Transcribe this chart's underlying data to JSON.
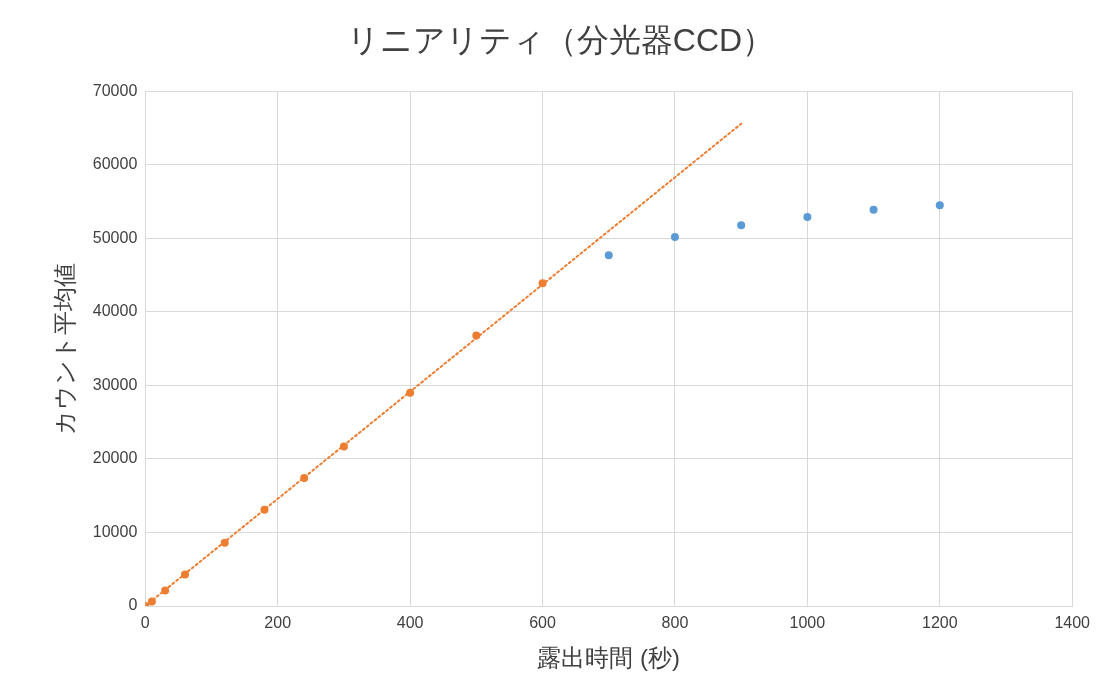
{
  "chart_data": {
    "type": "scatter",
    "title": "リニアリティ（分光器CCD）",
    "xlabel": "露出時間 (秒)",
    "ylabel": "カウント平均値",
    "series": [
      {
        "type": "scatter",
        "color": "#5b9bd5",
        "x": [
          700,
          800,
          900,
          1000,
          1100,
          1200
        ],
        "values": [
          47700,
          50200,
          51800,
          52900,
          53900,
          54500
        ]
      },
      {
        "type": "scatter",
        "color": "#ed7d31",
        "x": [
          0,
          10,
          30,
          60,
          120,
          180,
          240,
          300,
          400,
          500,
          600
        ],
        "values": [
          0,
          600,
          2100,
          4300,
          8600,
          13100,
          17400,
          21700,
          29000,
          36800,
          43900
        ]
      },
      {
        "type": "line",
        "color": "#ed7d31",
        "line_style": "dotted",
        "marker": "none",
        "x": [
          0,
          900
        ],
        "values": [
          0,
          65600
        ]
      }
    ],
    "marker": "circle",
    "xlim": [
      0,
      1400
    ],
    "xticks": [
      0,
      200,
      400,
      600,
      800,
      1000,
      1200,
      1400
    ],
    "ylim": [
      0,
      70000
    ],
    "yticks": [
      0,
      10000,
      20000,
      30000,
      40000,
      50000,
      60000,
      70000
    ],
    "grid": true,
    "legend": false
  }
}
